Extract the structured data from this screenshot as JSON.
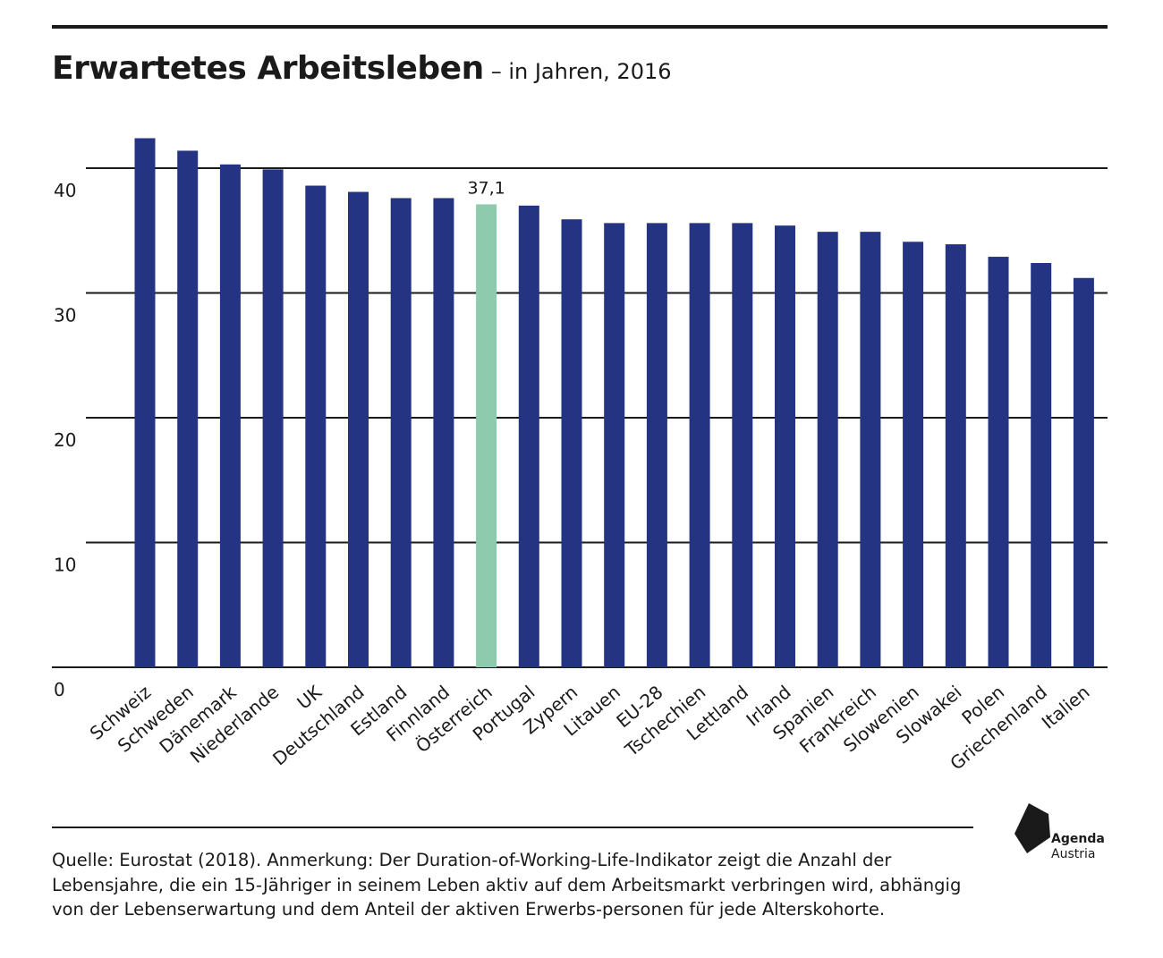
{
  "header": {
    "title": "Erwartetes Arbeitsleben",
    "subtitle": "– in Jahren, 2016"
  },
  "footer": {
    "note": "Quelle: Eurostat (2018). Anmerkung: Der Duration-of-Working-Life-Indikator zeigt die Anzahl der Lebensjahre, die ein 15-Jähriger in seinem Leben aktiv auf dem Arbeitsmarkt verbringen wird, abhängig von der Lebenserwartung und dem Anteil der aktiven Erwerbs-personen für jede Alterskohorte.",
    "logo_line1": "Agenda",
    "logo_line2": "Austria"
  },
  "colors": {
    "bar": "#253383",
    "highlight": "#8ecaae",
    "grid": "#1a1a1a"
  },
  "chart_data": {
    "type": "bar",
    "categories": [
      "Schweiz",
      "Schweden",
      "Dänemark",
      "Niederlande",
      "UK",
      "Deutschland",
      "Estland",
      "Finnland",
      "Österreich",
      "Portugal",
      "Zypern",
      "Litauen",
      "EU-28",
      "Tschechien",
      "Lettland",
      "Irland",
      "Spanien",
      "Frankreich",
      "Slowenien",
      "Slowakei",
      "Polen",
      "Griechenland",
      "Italien"
    ],
    "values": [
      42.4,
      41.4,
      40.3,
      39.9,
      38.6,
      38.1,
      37.6,
      37.6,
      37.1,
      37.0,
      35.9,
      35.6,
      35.6,
      35.6,
      35.6,
      35.4,
      34.9,
      34.9,
      34.1,
      33.9,
      32.9,
      32.4,
      31.2
    ],
    "highlight_index": 8,
    "annotation": "37,1",
    "yticks": [
      0,
      10,
      20,
      30,
      40
    ],
    "ylim": [
      0,
      42.4
    ],
    "grid": true,
    "xlabel": "",
    "ylabel": ""
  }
}
